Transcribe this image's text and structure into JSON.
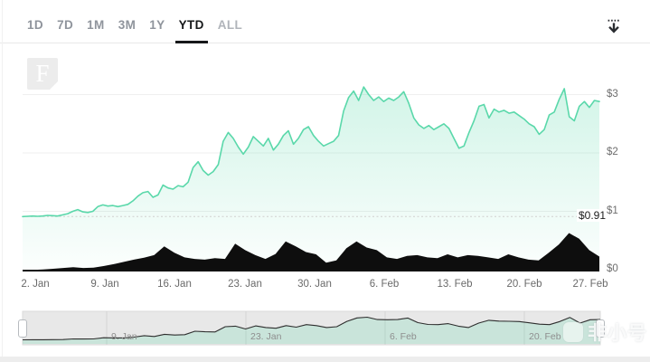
{
  "toolbar": {
    "ranges": [
      {
        "label": "1D",
        "active": false
      },
      {
        "label": "7D",
        "active": false
      },
      {
        "label": "1M",
        "active": false
      },
      {
        "label": "3M",
        "active": false
      },
      {
        "label": "1Y",
        "active": false
      },
      {
        "label": "YTD",
        "active": true
      },
      {
        "label": "ALL",
        "active": false
      }
    ]
  },
  "logo": {
    "letter": "F"
  },
  "watermark": {
    "text": "非小号"
  },
  "chart_data": {
    "type": "line",
    "x_range": "1. Jan – 27. Feb",
    "ylim": [
      0,
      3.3
    ],
    "grid": "horizontal",
    "legend": "none",
    "y_ticks": {
      "labels": [
        "$3",
        "$2",
        "$1",
        "$0"
      ],
      "values": [
        3,
        2,
        1,
        0
      ]
    },
    "x_ticks": [
      "2. Jan",
      "9. Jan",
      "16. Jan",
      "23. Jan",
      "30. Jan",
      "6. Feb",
      "13. Feb",
      "20. Feb",
      "27. Feb"
    ],
    "annotation": {
      "label": "$0.91",
      "value": 0.91
    },
    "navigator": {
      "ticks": [
        "9. Jan",
        "23. Jan",
        "6. Feb",
        "20. Feb"
      ]
    },
    "colors": {
      "line": "#5ad8aa",
      "volume": "#0e0e0e",
      "annotation_line": "#cfcfcf",
      "grid": "#efefef"
    },
    "series": [
      {
        "name": "price",
        "unit": "USD",
        "points_per_day": 2,
        "start": "1. Jan",
        "end": "27. Feb",
        "values": [
          0.91,
          0.915,
          0.92,
          0.915,
          0.92,
          0.93,
          0.925,
          0.92,
          0.94,
          0.96,
          1.0,
          1.03,
          0.99,
          0.98,
          1.0,
          1.08,
          1.11,
          1.09,
          1.1,
          1.08,
          1.1,
          1.12,
          1.18,
          1.26,
          1.32,
          1.34,
          1.24,
          1.28,
          1.45,
          1.4,
          1.38,
          1.44,
          1.42,
          1.5,
          1.75,
          1.85,
          1.7,
          1.62,
          1.68,
          1.8,
          2.2,
          2.35,
          2.25,
          2.1,
          1.98,
          2.1,
          2.28,
          2.2,
          2.12,
          2.25,
          2.05,
          2.15,
          2.3,
          2.38,
          2.15,
          2.25,
          2.4,
          2.45,
          2.3,
          2.2,
          2.12,
          2.16,
          2.2,
          2.3,
          2.72,
          2.95,
          3.06,
          2.9,
          3.13,
          3.0,
          2.9,
          2.96,
          2.88,
          2.94,
          2.9,
          2.96,
          3.05,
          2.85,
          2.6,
          2.48,
          2.42,
          2.47,
          2.4,
          2.45,
          2.5,
          2.42,
          2.25,
          2.08,
          2.12,
          2.35,
          2.55,
          2.8,
          2.83,
          2.6,
          2.75,
          2.7,
          2.73,
          2.68,
          2.7,
          2.64,
          2.58,
          2.5,
          2.45,
          2.32,
          2.4,
          2.65,
          2.7,
          2.92,
          3.1,
          2.62,
          2.55,
          2.8,
          2.88,
          2.78,
          2.9,
          2.88
        ]
      },
      {
        "name": "volume",
        "unit": "relative height 0-1 (axis not labeled)",
        "points_per_day": 1,
        "values": [
          0.02,
          0.03,
          0.04,
          0.06,
          0.08,
          0.1,
          0.08,
          0.09,
          0.13,
          0.18,
          0.24,
          0.3,
          0.35,
          0.42,
          0.65,
          0.48,
          0.36,
          0.32,
          0.3,
          0.34,
          0.32,
          0.72,
          0.55,
          0.42,
          0.32,
          0.45,
          0.78,
          0.65,
          0.5,
          0.44,
          0.22,
          0.28,
          0.6,
          0.78,
          0.62,
          0.55,
          0.36,
          0.32,
          0.4,
          0.42,
          0.36,
          0.34,
          0.44,
          0.36,
          0.42,
          0.4,
          0.36,
          0.32,
          0.44,
          0.36,
          0.3,
          0.28,
          0.48,
          0.7,
          1.0,
          0.85,
          0.55,
          0.38
        ]
      }
    ]
  }
}
